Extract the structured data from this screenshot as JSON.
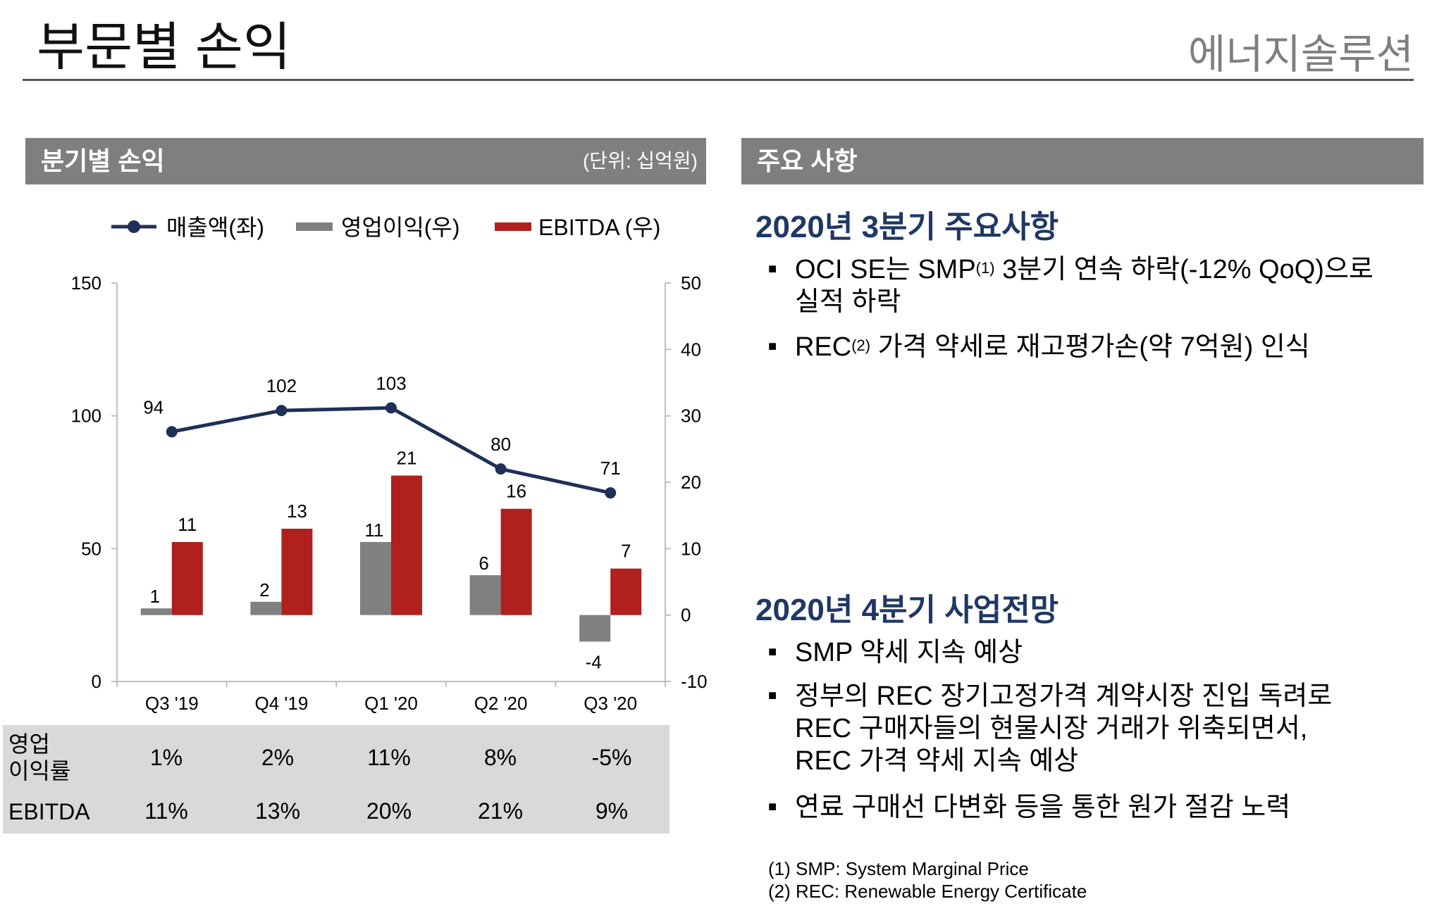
{
  "header": {
    "title": "부문별 손익",
    "subtitle": "에너지솔루션"
  },
  "left_panel": {
    "title": "분기별 손익",
    "unit": "(단위: 십억원)"
  },
  "right_panel": {
    "title": "주요 사항"
  },
  "colors": {
    "line": "#1f3056",
    "op_bar": "#808080",
    "ebitda_bar": "#b0201c",
    "panel_head": "#7f7f7f",
    "section_title": "#1f3864",
    "table_bg": "#d9d9d9"
  },
  "chart_data": {
    "type": "bar",
    "categories": [
      "Q3 '19",
      "Q4 '19",
      "Q1 '20",
      "Q2 '20",
      "Q3 '20"
    ],
    "series": [
      {
        "name": "매출액(좌)",
        "type": "line",
        "axis": "left",
        "values": [
          94,
          102,
          103,
          80,
          71
        ]
      },
      {
        "name": "영업이익(우)",
        "type": "bar",
        "axis": "right",
        "values": [
          1,
          2,
          11,
          6,
          -4
        ]
      },
      {
        "name": "EBITDA (우)",
        "type": "bar",
        "axis": "right",
        "values": [
          11,
          13,
          21,
          16,
          7
        ]
      }
    ],
    "y_left": {
      "min": 0,
      "max": 150,
      "ticks": [
        0,
        50,
        100,
        150
      ]
    },
    "y_right": {
      "min": -10,
      "max": 50,
      "ticks": [
        -10,
        0,
        10,
        20,
        30,
        40,
        50
      ]
    },
    "legend": [
      "매출액(좌)",
      "영업이익(우)",
      "EBITDA (우)"
    ],
    "legend_position": "top"
  },
  "metrics": {
    "op_margin_label": [
      "영업",
      "이익률"
    ],
    "op_margin": [
      "1%",
      "2%",
      "11%",
      "8%",
      "-5%"
    ],
    "ebitda_label": "EBITDA",
    "ebitda_margin": [
      "11%",
      "13%",
      "20%",
      "21%",
      "9%"
    ]
  },
  "highlights": {
    "q3_title": "2020년 3분기 주요사항",
    "q3_bullets": [
      {
        "pre": "OCI SE는 SMP",
        "sup": "(1)",
        "post": " 3분기 연속 하락(-12% QoQ)으로"
      },
      {
        "pre": "실적 하락",
        "sup": "",
        "post": ""
      },
      {
        "pre": "REC",
        "sup": "(2)",
        "post": " 가격 약세로 재고평가손(약 7억원) 인식"
      }
    ],
    "q4_title": "2020년 4분기 사업전망",
    "q4_bullets": [
      "SMP 약세 지속 예상",
      "정부의 REC 장기고정가격 계약시장 진입 독려로",
      "REC 구매자들의 현물시장 거래가 위축되면서,",
      "REC 가격 약세 지속 예상",
      "연료 구매선 다변화 등을 통한 원가 절감 노력"
    ],
    "bullet_symbol": "■"
  },
  "footnotes": [
    "(1)  SMP: System Marginal Price",
    "(2)  REC: Renewable Energy Certificate"
  ]
}
